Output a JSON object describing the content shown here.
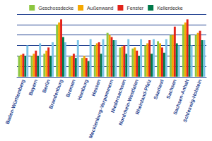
{
  "chart_data": {
    "type": "bar",
    "categories": [
      "Baden-Württemberg",
      "Bayern",
      "Berlin",
      "Brandenburg",
      "Bremen",
      "Hamburg",
      "Hessen",
      "Mecklenburg-Vorpommern",
      "Niedersachsen",
      "Nordrhein-Westfalen",
      "Rheinland-Pfalz",
      "Saarland",
      "Sachsen",
      "Sachsen-Anhalt",
      "Schleswig-Holstein"
    ],
    "series": [
      {
        "name": "Geschossdecke",
        "color": "#8cc63f",
        "values": [
          2.0,
          2.0,
          2.2,
          5.0,
          1.9,
          1.8,
          3.0,
          4.2,
          2.8,
          2.7,
          3.0,
          3.4,
          4.0,
          5.0,
          4.0
        ]
      },
      {
        "name": "Außenwand",
        "color": "#f5a800",
        "values": [
          2.1,
          2.2,
          2.5,
          5.2,
          2.0,
          2.0,
          3.2,
          4.0,
          2.9,
          2.8,
          3.2,
          3.2,
          4.0,
          5.2,
          4.2
        ]
      },
      {
        "name": "Fenster",
        "color": "#e2231a",
        "values": [
          2.2,
          2.5,
          2.8,
          5.5,
          2.2,
          1.8,
          3.3,
          3.8,
          3.0,
          2.5,
          3.5,
          2.8,
          4.8,
          5.5,
          4.4
        ]
      },
      {
        "name": "Kellerdecke",
        "color": "#00794a",
        "values": [
          2.0,
          2.0,
          2.0,
          3.8,
          1.8,
          1.5,
          2.2,
          3.5,
          2.2,
          2.0,
          2.2,
          2.3,
          3.2,
          4.0,
          3.5
        ]
      },
      {
        "color": "#7cc4e8",
        "values": [
          3.0,
          3.2,
          3.3,
          3.3,
          3.5,
          3.6,
          3.6,
          3.5,
          3.6,
          3.6,
          3.6,
          3.6,
          3.0,
          3.0,
          3.5
        ]
      }
    ],
    "ylim": [
      0,
      6
    ],
    "yticks": [
      0,
      1,
      2,
      3,
      4,
      5,
      6
    ],
    "grid": true,
    "legend": "top",
    "tick_labels": "x"
  }
}
